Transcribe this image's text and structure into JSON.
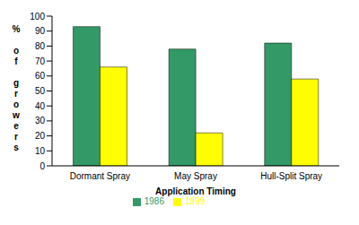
{
  "chart_data": {
    "type": "bar",
    "x_label": "Application Timing",
    "y_label": "% of growers",
    "categories": [
      "Dormant Spray",
      "May Spray",
      "Hull-Split Spray"
    ],
    "series": [
      {
        "name": "1986",
        "color": "#339966",
        "values": [
          93,
          78,
          82
        ]
      },
      {
        "name": "1999",
        "color": "#ffff00",
        "values": [
          66,
          22,
          58
        ]
      }
    ],
    "ylim": [
      0,
      100
    ],
    "yticks": [
      0,
      10,
      20,
      30,
      40,
      50,
      60,
      70,
      80,
      90,
      100
    ],
    "grid": false,
    "legend": "bottom"
  }
}
